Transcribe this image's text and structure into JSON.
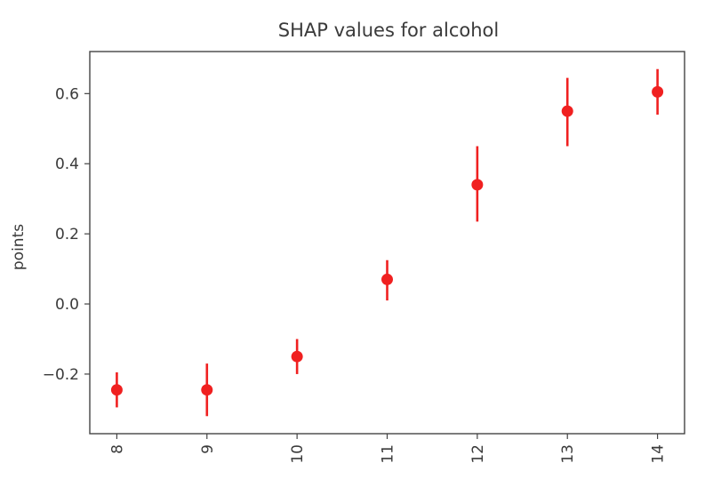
{
  "chart_data": {
    "type": "scatter",
    "title": "SHAP values for alcohol",
    "xlabel": "",
    "ylabel": "points",
    "x": [
      8,
      9,
      10,
      11,
      12,
      13,
      14
    ],
    "x_tick_labels": [
      "8",
      "9",
      "10",
      "11",
      "12",
      "13",
      "14"
    ],
    "x_tick_rotation": "vertical",
    "y_ticks": [
      -0.2,
      0.0,
      0.2,
      0.4,
      0.6
    ],
    "y_tick_labels": [
      "−0.2",
      "0.0",
      "0.2",
      "0.4",
      "0.6"
    ],
    "xlim": [
      7.7,
      14.3
    ],
    "ylim": [
      -0.37,
      0.72
    ],
    "grid": false,
    "series": [
      {
        "values": [
          -0.245,
          -0.245,
          -0.15,
          0.07,
          0.34,
          0.55,
          0.605
        ],
        "error_low": [
          -0.295,
          -0.32,
          -0.2,
          0.01,
          0.235,
          0.45,
          0.54
        ],
        "error_high": [
          -0.195,
          -0.17,
          -0.1,
          0.125,
          0.45,
          0.645,
          0.67
        ],
        "marker": "circle",
        "color": "#f02020"
      }
    ]
  }
}
